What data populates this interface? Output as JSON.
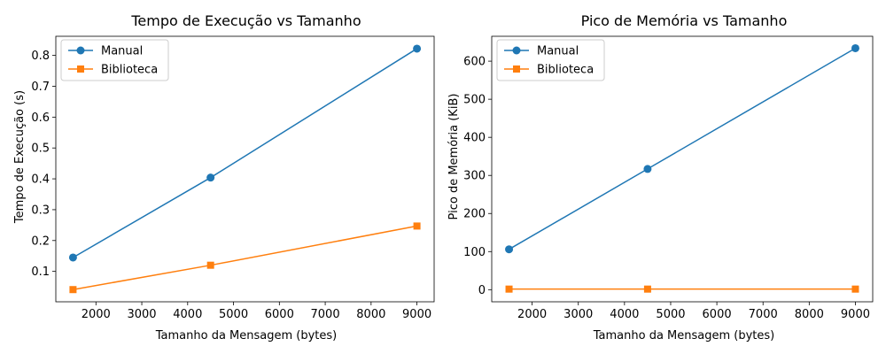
{
  "chart_data": [
    {
      "type": "line",
      "title": "Tempo de Execução vs Tamanho",
      "xlabel": "Tamanho da Mensagem (bytes)",
      "ylabel": "Tempo de Execução (s)",
      "x": [
        1500,
        4500,
        9000
      ],
      "xlim": [
        1125,
        9375
      ],
      "ylim": [
        0.0015,
        0.862
      ],
      "xticks": [
        2000,
        3000,
        4000,
        5000,
        6000,
        7000,
        8000,
        9000
      ],
      "yticks": [
        0.1,
        0.2,
        0.3,
        0.4,
        0.5,
        0.6,
        0.7,
        0.8
      ],
      "grid": false,
      "legend_position": "top-left",
      "series": [
        {
          "name": "Manual",
          "values": [
            0.145,
            0.404,
            0.822
          ],
          "color": "#1f77b4",
          "marker": "circle"
        },
        {
          "name": "Biblioteca",
          "values": [
            0.041,
            0.12,
            0.247
          ],
          "color": "#ff7f0e",
          "marker": "square"
        }
      ]
    },
    {
      "type": "line",
      "title": "Pico de Memória vs Tamanho",
      "xlabel": "Tamanho da Mensagem (bytes)",
      "ylabel": "Pico de Memória (KiB)",
      "x": [
        1500,
        4500,
        9000
      ],
      "xlim": [
        1125,
        9375
      ],
      "ylim": [
        -31.8,
        665.3
      ],
      "xticks": [
        2000,
        3000,
        4000,
        5000,
        6000,
        7000,
        8000,
        9000
      ],
      "yticks": [
        0,
        100,
        200,
        300,
        400,
        500,
        600
      ],
      "grid": false,
      "legend_position": "top-left",
      "series": [
        {
          "name": "Manual",
          "values": [
            106,
            317,
            634
          ],
          "color": "#1f77b4",
          "marker": "circle"
        },
        {
          "name": "Biblioteca",
          "values": [
            1.5,
            1.5,
            1.5
          ],
          "color": "#ff7f0e",
          "marker": "square"
        }
      ]
    }
  ]
}
